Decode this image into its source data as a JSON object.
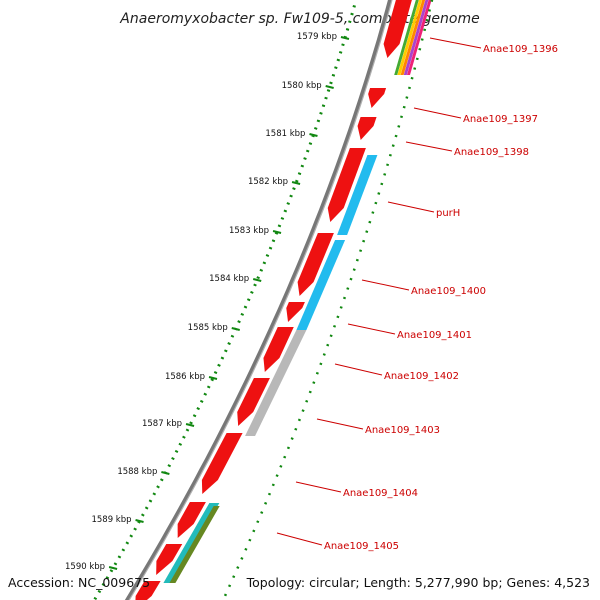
{
  "title": "Anaeromyxobacter sp. Fw109-5, complete genome",
  "accession": "Accession: NC_009675",
  "summary": "Topology: circular; Length: 5,277,990 bp; Genes: 4,523",
  "scale": {
    "ticks": [
      "1579 kbp",
      "1580 kbp",
      "1581 kbp",
      "1582 kbp",
      "1583 kbp",
      "1584 kbp",
      "1585 kbp",
      "1586 kbp",
      "1587 kbp",
      "1588 kbp",
      "1589 kbp",
      "1590 kbp"
    ]
  },
  "colors": {
    "cds_forward": "#ee1111",
    "cog_cyan": "#22bbee",
    "cog_gray": "#b8b8b8",
    "cog_teal": "#22bbbb",
    "cog_olive": "#668822",
    "label": "#cc0000",
    "tick": "#118811",
    "backbone": "#777777"
  },
  "genes": [
    {
      "name": "Anae109_1396"
    },
    {
      "name": "Anae109_1397"
    },
    {
      "name": "Anae109_1398"
    },
    {
      "name": "purH"
    },
    {
      "name": "Anae109_1400"
    },
    {
      "name": "Anae109_1401"
    },
    {
      "name": "Anae109_1402"
    },
    {
      "name": "Anae109_1403"
    },
    {
      "name": "Anae109_1404"
    },
    {
      "name": "Anae109_1405"
    }
  ]
}
